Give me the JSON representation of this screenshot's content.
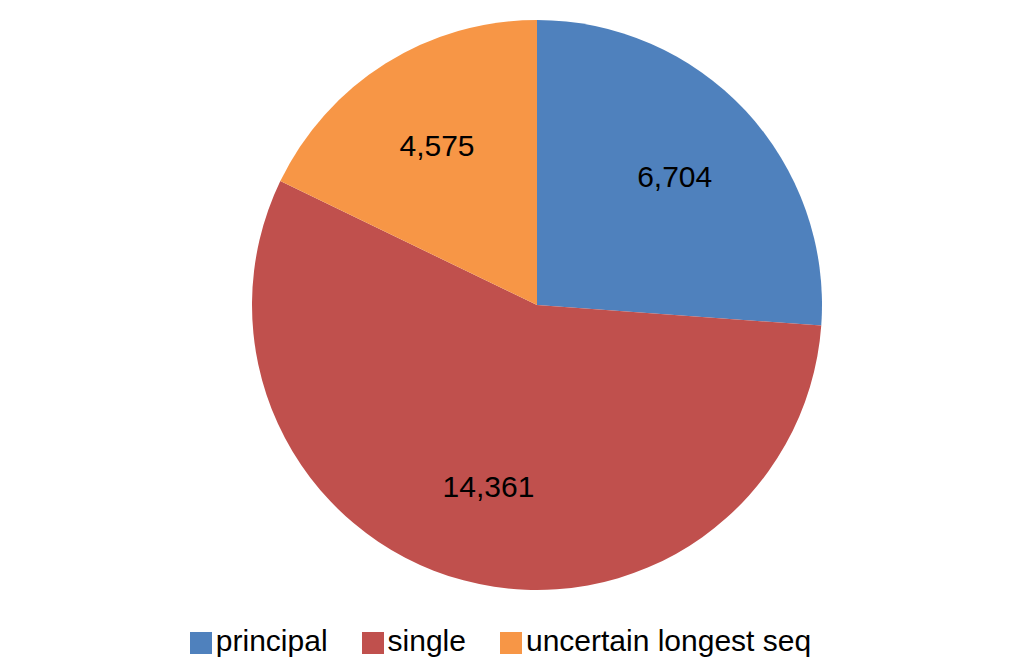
{
  "chart_data": {
    "type": "pie",
    "categories": [
      "principal",
      "single",
      "uncertain longest seq"
    ],
    "values": [
      6704,
      14361,
      4575
    ],
    "value_labels": [
      "6,704",
      "14,361",
      "4,575"
    ],
    "colors": [
      "#4f81bd",
      "#c0504d",
      "#f79646"
    ],
    "data_labels": true,
    "legend": "bottom"
  }
}
